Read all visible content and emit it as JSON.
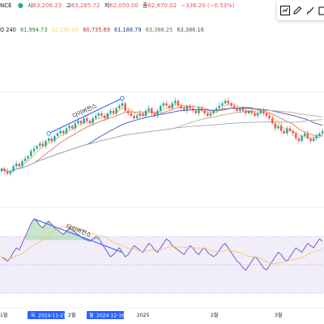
{
  "header": {
    "symbol_fragment": "NANCE",
    "ohlc": [
      {
        "label": "시",
        "value": "63,206.23"
      },
      {
        "label": "고",
        "value": "63,285.72"
      },
      {
        "label": "저",
        "value": "62,050.00"
      },
      {
        "label": "종",
        "value": "62,870.02"
      }
    ],
    "change": "−336.20 (−0.53%)",
    "ma_line": {
      "prefix": "O 240",
      "values": [
        {
          "text": "61,994.73",
          "color": "#2e7d32"
        },
        {
          "text": "60,735.69",
          "color": "#c62828"
        },
        {
          "text": "61,188.79",
          "color": "#1e3a8a"
        },
        {
          "text": "63,386.25",
          "color": "#7a6a4f"
        },
        {
          "text": "63,386.16",
          "color": "#555555"
        }
      ],
      "hidden_yellow": "62,190.66"
    }
  },
  "toolbar": {
    "icons": [
      "chart-box-icon",
      "pencil-icon",
      "brush-icon",
      "calendar-icon"
    ]
  },
  "chart_data": [
    {
      "type": "candlestick",
      "title": "",
      "annotation": "다이버전스",
      "moving_averages": [
        {
          "color": "#e6c14f"
        },
        {
          "color": "#e57373"
        },
        {
          "color": "#3f51b5"
        },
        {
          "color": "#c6a88b"
        },
        {
          "color": "#aaaaaa"
        }
      ],
      "up_color": "#26a69a",
      "down_color": "#ef5350",
      "close_series": [
        62,
        61,
        60,
        61,
        63,
        64,
        63,
        65,
        66,
        67,
        69,
        70,
        71,
        72,
        71,
        73,
        74,
        73,
        75,
        76,
        77,
        76,
        78,
        79,
        78,
        80,
        81,
        80,
        82,
        81,
        80,
        82,
        83,
        84,
        83,
        82,
        84,
        85,
        84,
        86,
        87,
        88,
        85,
        84,
        83,
        82,
        83,
        84,
        83,
        85,
        86,
        84,
        83,
        85,
        87,
        88,
        87,
        86,
        88,
        89,
        87,
        86,
        85,
        87,
        86,
        85,
        84,
        86,
        85,
        84,
        83,
        84,
        85,
        86,
        87,
        88,
        89,
        88,
        87,
        86,
        85,
        86,
        85,
        84,
        85,
        84,
        83,
        84,
        85,
        84,
        83,
        82,
        80,
        78,
        79,
        77,
        76,
        78,
        77,
        76,
        74,
        73,
        75,
        76,
        74,
        73,
        74,
        75,
        76,
        77
      ]
    },
    {
      "type": "line",
      "name": "",
      "level_lines": [
        30,
        50,
        70
      ],
      "annotation": "다이버전스",
      "rsi_series": [
        40,
        38,
        36,
        39,
        44,
        48,
        46,
        52,
        58,
        64,
        70,
        74,
        72,
        68,
        66,
        70,
        72,
        69,
        66,
        64,
        62,
        60,
        63,
        66,
        64,
        62,
        60,
        58,
        56,
        55,
        54,
        56,
        58,
        57,
        52,
        48,
        44,
        40,
        42,
        45,
        48,
        44,
        40,
        42,
        46,
        50,
        48,
        46,
        44,
        48,
        52,
        50,
        46,
        44,
        48,
        52,
        56,
        54,
        50,
        48,
        46,
        44,
        42,
        46,
        50,
        48,
        44,
        42,
        46,
        48,
        44,
        42,
        40,
        42,
        46,
        50,
        52,
        48,
        44,
        40,
        36,
        34,
        30,
        28,
        32,
        36,
        40,
        38,
        34,
        30,
        28,
        32,
        36,
        40,
        44,
        42,
        38,
        36,
        40,
        44,
        48,
        46,
        44,
        48,
        52,
        50,
        48,
        52,
        56,
        54
      ]
    }
  ],
  "time_axis": {
    "ticks": [
      "1월",
      "2월",
      "2025",
      "2월",
      "3월"
    ],
    "highlight_labels": [
      {
        "prefix": "목",
        "date": "2024-11-21"
      },
      {
        "prefix": "월",
        "date": "2024-12-16"
      }
    ]
  }
}
